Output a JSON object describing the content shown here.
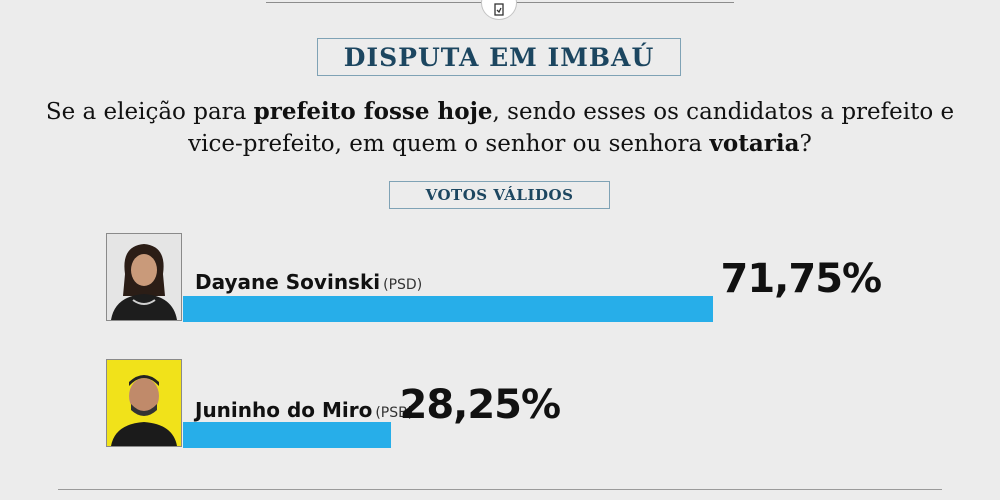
{
  "header": {
    "title": "DISPUTA EM IMBAÚ",
    "question_parts": [
      {
        "text": "Se a eleição para ",
        "bold": false
      },
      {
        "text": "prefeito fosse hoje",
        "bold": true
      },
      {
        "text": ", sendo esses os candidatos a prefeito e vice-prefeito, em quem o senhor ou senhora ",
        "bold": false
      },
      {
        "text": "votaria",
        "bold": true
      },
      {
        "text": "?",
        "bold": false
      }
    ],
    "subtitle": "VOTOS VÁLIDOS"
  },
  "colors": {
    "bar": "#27aee9",
    "title": "#1c4660",
    "photo_bg_1": "#e5e5e5",
    "photo_bg_2": "#f1e21a"
  },
  "chart_data": {
    "type": "bar",
    "orientation": "horizontal",
    "title": "DISPUTA EM IMBAÚ",
    "subtitle": "VOTOS VÁLIDOS",
    "categories": [
      "Dayane Sovinski",
      "Juninho do Miro"
    ],
    "parties": [
      "(PSD)",
      "(PSB)"
    ],
    "values": [
      71.75,
      28.25
    ],
    "value_labels": [
      "71,75%",
      "28,25%"
    ],
    "xlim": [
      0,
      100
    ],
    "grid": false,
    "legend": "none"
  }
}
